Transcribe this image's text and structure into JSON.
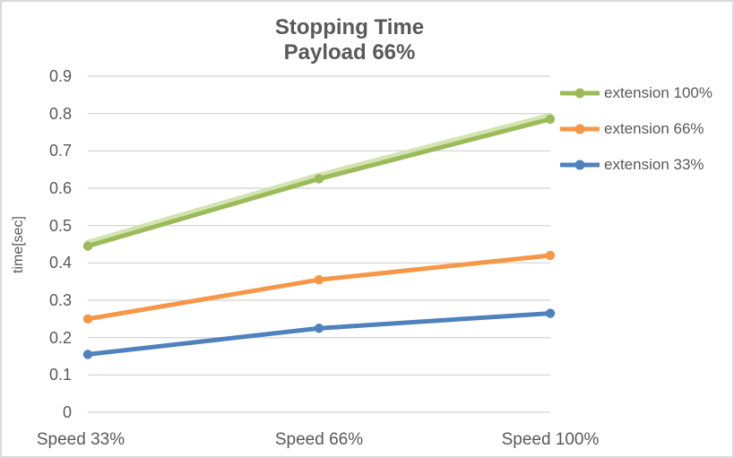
{
  "chart_data": {
    "type": "line",
    "title": "Stopping Time",
    "subtitle": "Payload 66%",
    "ylabel": "time[sec]",
    "xlabel": "",
    "categories": [
      "Speed 33%",
      "Speed 66%",
      "Speed 100%"
    ],
    "series": [
      {
        "name": "extension 100%",
        "color": "#9BBB59",
        "values": [
          0.445,
          0.625,
          0.785
        ],
        "glow": true
      },
      {
        "name": "extension 66%",
        "color": "#F79646",
        "values": [
          0.25,
          0.355,
          0.42
        ],
        "glow": false
      },
      {
        "name": "extension 33%",
        "color": "#4F81BD",
        "values": [
          0.155,
          0.225,
          0.265
        ],
        "glow": false
      }
    ],
    "ylim": [
      0,
      0.9
    ],
    "ytick_values": [
      0,
      0.1,
      0.2,
      0.3,
      0.4,
      0.5,
      0.6,
      0.7,
      0.8,
      0.9
    ],
    "ytick_labels": [
      "0",
      "0.1",
      "0.2",
      "0.3",
      "0.4",
      "0.5",
      "0.6",
      "0.7",
      "0.8",
      "0.9"
    ],
    "grid": true,
    "legend_position": "right",
    "marker": "circle"
  },
  "style": {
    "text_color": "#595959",
    "grid_color": "#D9D9D9",
    "background": "#FFFFFF",
    "border_color": "#D9D9D9",
    "glow_color": "#CBDEA3"
  }
}
